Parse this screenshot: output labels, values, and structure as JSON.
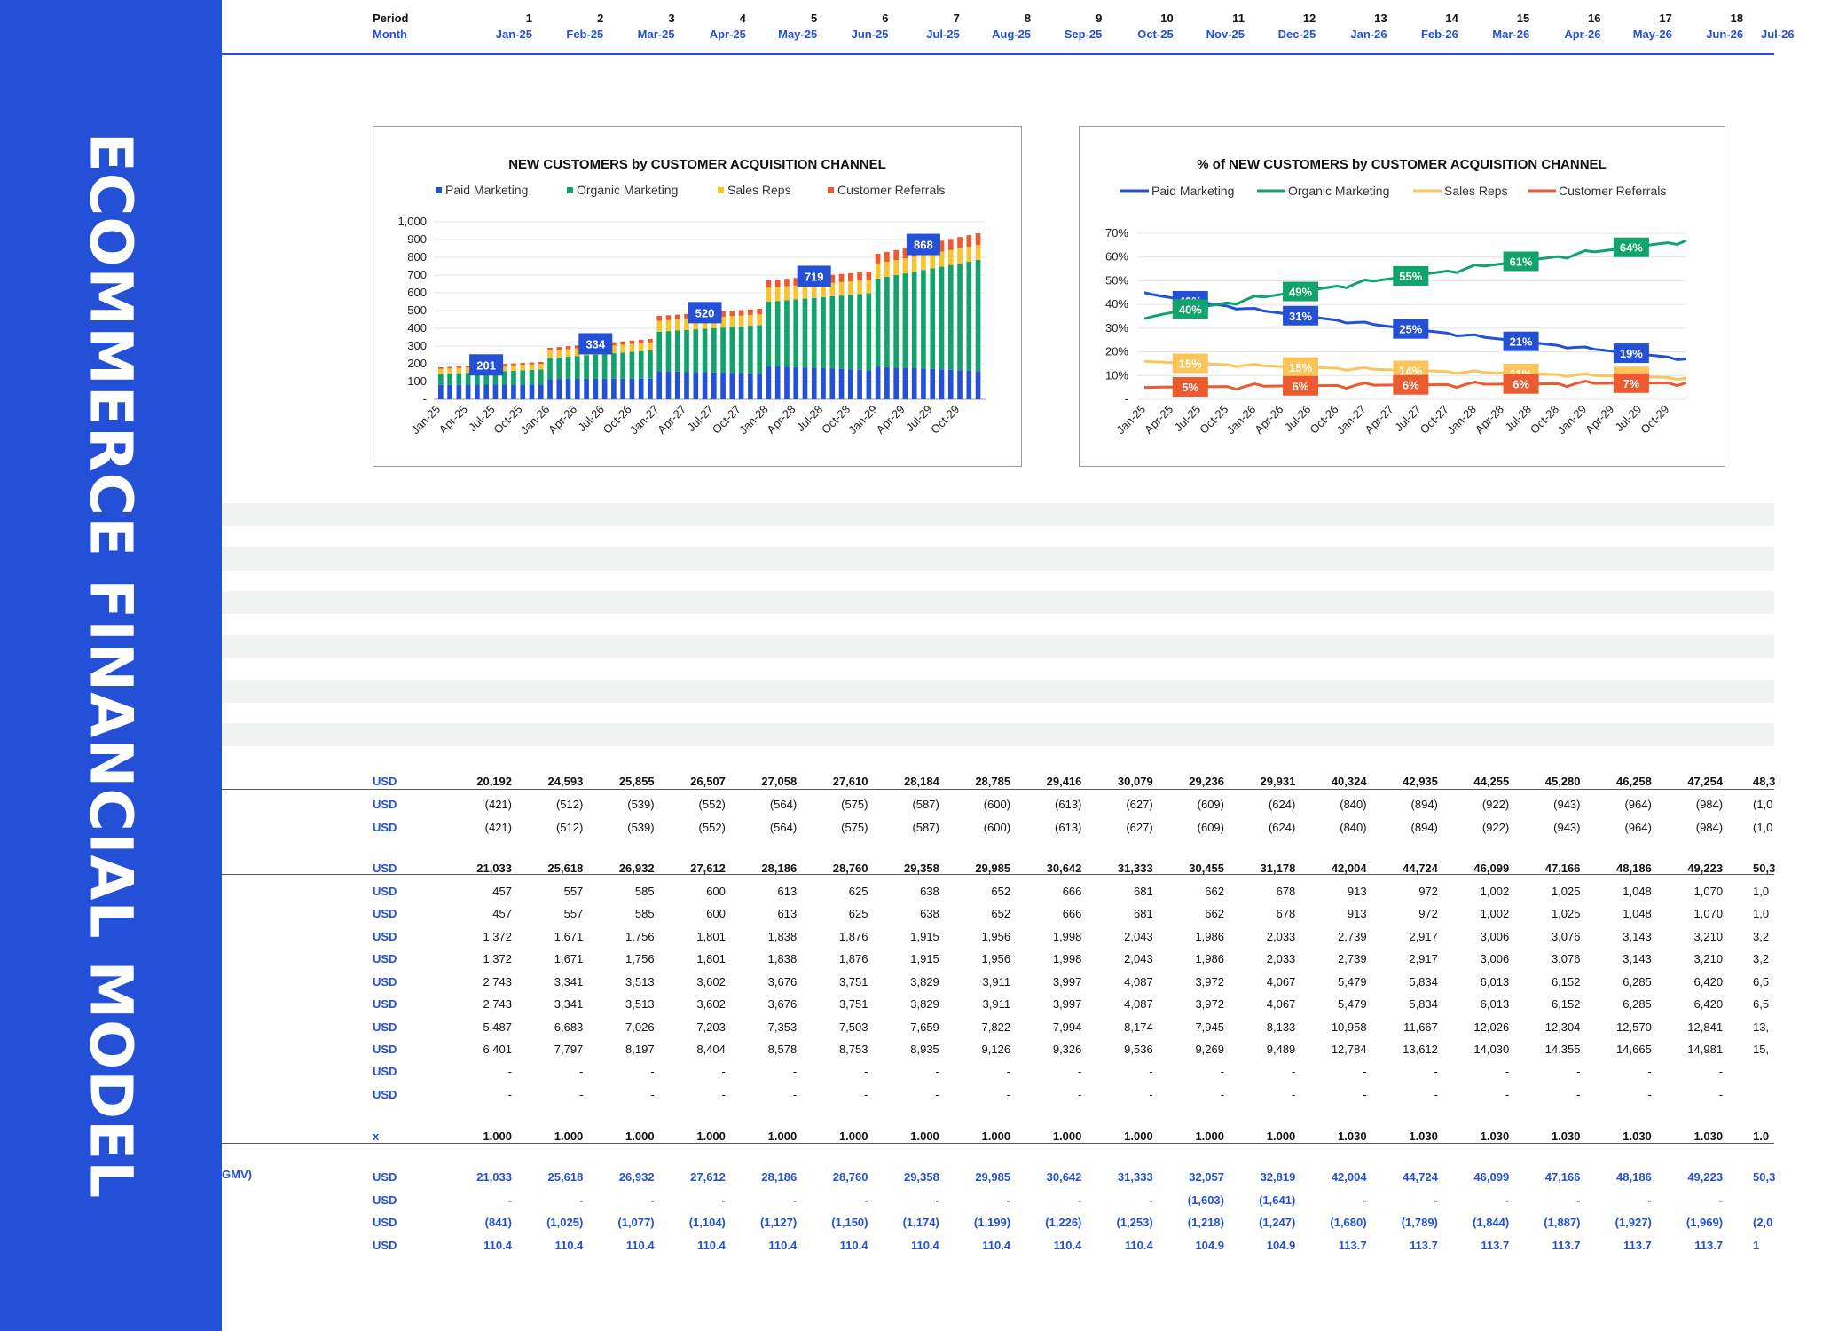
{
  "sidebar": {
    "title": "ECOMMERCE FINANCIAL MODEL"
  },
  "header": {
    "period_label": "Period",
    "month_label": "Month",
    "periods": [
      "1",
      "2",
      "3",
      "4",
      "5",
      "6",
      "7",
      "8",
      "9",
      "10",
      "11",
      "12",
      "13",
      "14",
      "15",
      "16",
      "17",
      "18"
    ],
    "months": [
      "Jan-25",
      "Feb-25",
      "Mar-25",
      "Apr-25",
      "May-25",
      "Jun-25",
      "Jul-25",
      "Aug-25",
      "Sep-25",
      "Oct-25",
      "Nov-25",
      "Dec-25",
      "Jan-26",
      "Feb-26",
      "Mar-26",
      "Apr-26",
      "May-26",
      "Jun-26"
    ],
    "partial_month": "Jul-26"
  },
  "chart_data": [
    {
      "type": "bar",
      "stacked": true,
      "title": "NEW CUSTOMERS by CUSTOMER ACQUISITION CHANNEL",
      "legend": [
        "Paid Marketing",
        "Organic Marketing",
        "Sales Reps",
        "Customer Referrals"
      ],
      "legend_position": "top",
      "colors": [
        "#2350d6",
        "#10a36b",
        "#f7c530",
        "#ee5a2f"
      ],
      "y_ticks": [
        "1,000",
        "900",
        "800",
        "700",
        "600",
        "500",
        "400",
        "300",
        "200",
        "100",
        "-"
      ],
      "ylim": [
        0,
        1000
      ],
      "x_ticks": [
        "Jan-25",
        "Apr-25",
        "Jul-25",
        "Oct-25",
        "Jan-26",
        "Apr-26",
        "Jul-26",
        "Oct-26",
        "Jan-27",
        "Apr-27",
        "Jul-27",
        "Oct-27",
        "Jan-28",
        "Apr-28",
        "Jul-28",
        "Oct-28",
        "Jan-29",
        "Apr-29",
        "Jul-29",
        "Oct-29"
      ],
      "n_months": 60,
      "year_totals_start": [
        180,
        290,
        470,
        670,
        820
      ],
      "year_totals_end": [
        210,
        340,
        510,
        720,
        935
      ],
      "series_share_start": [
        0.45,
        0.34,
        0.16,
        0.05
      ],
      "series_share_end": [
        0.17,
        0.67,
        0.09,
        0.07
      ],
      "data_labels": [
        {
          "month_index": 5,
          "text": "201"
        },
        {
          "month_index": 17,
          "text": "334"
        },
        {
          "month_index": 29,
          "text": "520"
        },
        {
          "month_index": 41,
          "text": "719"
        },
        {
          "month_index": 53,
          "text": "868"
        }
      ]
    },
    {
      "type": "line",
      "title": "% of NEW CUSTOMERS by CUSTOMER ACQUISITION CHANNEL",
      "legend": [
        "Paid Marketing",
        "Organic Marketing",
        "Sales Reps",
        "Customer Referrals"
      ],
      "legend_position": "top",
      "colors": [
        "#2350d6",
        "#10a36b",
        "#fcc55a",
        "#ee5a2f"
      ],
      "y_ticks": [
        "70%",
        "60%",
        "50%",
        "40%",
        "30%",
        "20%",
        "10%",
        "-"
      ],
      "ylim": [
        0,
        70
      ],
      "x_ticks": [
        "Jan-25",
        "Apr-25",
        "Jul-25",
        "Oct-25",
        "Jan-26",
        "Apr-26",
        "Jul-26",
        "Oct-26",
        "Jan-27",
        "Apr-27",
        "Jul-27",
        "Oct-27",
        "Jan-28",
        "Apr-28",
        "Jul-28",
        "Oct-28",
        "Jan-29",
        "Apr-29",
        "Jul-29",
        "Oct-29"
      ],
      "n_months": 60,
      "series": [
        {
          "name": "Paid Marketing",
          "start": 45,
          "end": 17,
          "labels": [
            {
              "month_index": 5,
              "text": "40%"
            },
            {
              "month_index": 17,
              "text": "31%"
            },
            {
              "month_index": 29,
              "text": "25%"
            },
            {
              "month_index": 41,
              "text": "21%"
            },
            {
              "month_index": 53,
              "text": "19%"
            }
          ]
        },
        {
          "name": "Organic Marketing",
          "start": 34,
          "end": 67,
          "labels": [
            {
              "month_index": 5,
              "text": "40%"
            },
            {
              "month_index": 17,
              "text": "49%"
            },
            {
              "month_index": 29,
              "text": "55%"
            },
            {
              "month_index": 41,
              "text": "61%"
            },
            {
              "month_index": 53,
              "text": "64%"
            }
          ]
        },
        {
          "name": "Sales Reps",
          "start": 16,
          "end": 9,
          "labels": [
            {
              "month_index": 5,
              "text": "15%"
            },
            {
              "month_index": 17,
              "text": "15%"
            },
            {
              "month_index": 29,
              "text": "14%"
            },
            {
              "month_index": 41,
              "text": "11%"
            },
            {
              "month_index": 53,
              "text": "11%"
            }
          ]
        },
        {
          "name": "Customer Referrals",
          "start": 5,
          "end": 7,
          "labels": [
            {
              "month_index": 5,
              "text": "5%"
            },
            {
              "month_index": 17,
              "text": "6%"
            },
            {
              "month_index": 29,
              "text": "6%"
            },
            {
              "month_index": 41,
              "text": "6%"
            },
            {
              "month_index": 53,
              "text": "7%"
            }
          ]
        }
      ]
    }
  ],
  "table": {
    "row_labels": {
      "gmv_row": "GMV)"
    },
    "rows": [
      {
        "unit": "USD",
        "style": "bold",
        "values": [
          "20,192",
          "24,593",
          "25,855",
          "26,507",
          "27,058",
          "27,610",
          "28,184",
          "28,785",
          "29,416",
          "30,079",
          "29,236",
          "29,931",
          "40,324",
          "42,935",
          "44,255",
          "45,280",
          "46,258",
          "47,254",
          "48,3"
        ]
      },
      {
        "unit": "USD",
        "style": "",
        "values": [
          "(421)",
          "(512)",
          "(539)",
          "(552)",
          "(564)",
          "(575)",
          "(587)",
          "(600)",
          "(613)",
          "(627)",
          "(609)",
          "(624)",
          "(840)",
          "(894)",
          "(922)",
          "(943)",
          "(964)",
          "(984)",
          "(1,0"
        ]
      },
      {
        "unit": "USD",
        "style": "",
        "values": [
          "(421)",
          "(512)",
          "(539)",
          "(552)",
          "(564)",
          "(575)",
          "(587)",
          "(600)",
          "(613)",
          "(627)",
          "(609)",
          "(624)",
          "(840)",
          "(894)",
          "(922)",
          "(943)",
          "(964)",
          "(984)",
          "(1,0"
        ]
      },
      {
        "unit": "USD",
        "style": "bold",
        "values": [
          "21,033",
          "25,618",
          "26,932",
          "27,612",
          "28,186",
          "28,760",
          "29,358",
          "29,985",
          "30,642",
          "31,333",
          "30,455",
          "31,178",
          "42,004",
          "44,724",
          "46,099",
          "47,166",
          "48,186",
          "49,223",
          "50,3"
        ]
      },
      {
        "unit": "USD",
        "style": "",
        "values": [
          "457",
          "557",
          "585",
          "600",
          "613",
          "625",
          "638",
          "652",
          "666",
          "681",
          "662",
          "678",
          "913",
          "972",
          "1,002",
          "1,025",
          "1,048",
          "1,070",
          "1,0"
        ]
      },
      {
        "unit": "USD",
        "style": "",
        "values": [
          "457",
          "557",
          "585",
          "600",
          "613",
          "625",
          "638",
          "652",
          "666",
          "681",
          "662",
          "678",
          "913",
          "972",
          "1,002",
          "1,025",
          "1,048",
          "1,070",
          "1,0"
        ]
      },
      {
        "unit": "USD",
        "style": "",
        "values": [
          "1,372",
          "1,671",
          "1,756",
          "1,801",
          "1,838",
          "1,876",
          "1,915",
          "1,956",
          "1,998",
          "2,043",
          "1,986",
          "2,033",
          "2,739",
          "2,917",
          "3,006",
          "3,076",
          "3,143",
          "3,210",
          "3,2"
        ]
      },
      {
        "unit": "USD",
        "style": "",
        "values": [
          "1,372",
          "1,671",
          "1,756",
          "1,801",
          "1,838",
          "1,876",
          "1,915",
          "1,956",
          "1,998",
          "2,043",
          "1,986",
          "2,033",
          "2,739",
          "2,917",
          "3,006",
          "3,076",
          "3,143",
          "3,210",
          "3,2"
        ]
      },
      {
        "unit": "USD",
        "style": "",
        "values": [
          "2,743",
          "3,341",
          "3,513",
          "3,602",
          "3,676",
          "3,751",
          "3,829",
          "3,911",
          "3,997",
          "4,087",
          "3,972",
          "4,067",
          "5,479",
          "5,834",
          "6,013",
          "6,152",
          "6,285",
          "6,420",
          "6,5"
        ]
      },
      {
        "unit": "USD",
        "style": "",
        "values": [
          "2,743",
          "3,341",
          "3,513",
          "3,602",
          "3,676",
          "3,751",
          "3,829",
          "3,911",
          "3,997",
          "4,087",
          "3,972",
          "4,067",
          "5,479",
          "5,834",
          "6,013",
          "6,152",
          "6,285",
          "6,420",
          "6,5"
        ]
      },
      {
        "unit": "USD",
        "style": "",
        "values": [
          "5,487",
          "6,683",
          "7,026",
          "7,203",
          "7,353",
          "7,503",
          "7,659",
          "7,822",
          "7,994",
          "8,174",
          "7,945",
          "8,133",
          "10,958",
          "11,667",
          "12,026",
          "12,304",
          "12,570",
          "12,841",
          "13,"
        ]
      },
      {
        "unit": "USD",
        "style": "",
        "values": [
          "6,401",
          "7,797",
          "8,197",
          "8,404",
          "8,578",
          "8,753",
          "8,935",
          "9,126",
          "9,326",
          "9,536",
          "9,269",
          "9,489",
          "12,784",
          "13,612",
          "14,030",
          "14,355",
          "14,665",
          "14,981",
          "15,"
        ]
      },
      {
        "unit": "USD",
        "style": "",
        "values": [
          "-",
          "-",
          "-",
          "-",
          "-",
          "-",
          "-",
          "-",
          "-",
          "-",
          "-",
          "-",
          "-",
          "-",
          "-",
          "-",
          "-",
          "-",
          ""
        ]
      },
      {
        "unit": "USD",
        "style": "",
        "values": [
          "-",
          "-",
          "-",
          "-",
          "-",
          "-",
          "-",
          "-",
          "-",
          "-",
          "-",
          "-",
          "-",
          "-",
          "-",
          "-",
          "-",
          "-",
          ""
        ]
      },
      {
        "unit": "x",
        "style": "bold",
        "values": [
          "1.000",
          "1.000",
          "1.000",
          "1.000",
          "1.000",
          "1.000",
          "1.000",
          "1.000",
          "1.000",
          "1.000",
          "1.000",
          "1.000",
          "1.030",
          "1.030",
          "1.030",
          "1.030",
          "1.030",
          "1.030",
          "1.0"
        ]
      },
      {
        "unit": "USD",
        "style": "blue",
        "values": [
          "21,033",
          "25,618",
          "26,932",
          "27,612",
          "28,186",
          "28,760",
          "29,358",
          "29,985",
          "30,642",
          "31,333",
          "32,057",
          "32,819",
          "42,004",
          "44,724",
          "46,099",
          "47,166",
          "48,186",
          "49,223",
          "50,3"
        ]
      },
      {
        "unit": "USD",
        "style": "blue",
        "values": [
          "-",
          "-",
          "-",
          "-",
          "-",
          "-",
          "-",
          "-",
          "-",
          "-",
          "(1,603)",
          "(1,641)",
          "-",
          "-",
          "-",
          "-",
          "-",
          "-",
          ""
        ]
      },
      {
        "unit": "USD",
        "style": "blue",
        "values": [
          "(841)",
          "(1,025)",
          "(1,077)",
          "(1,104)",
          "(1,127)",
          "(1,150)",
          "(1,174)",
          "(1,199)",
          "(1,226)",
          "(1,253)",
          "(1,218)",
          "(1,247)",
          "(1,680)",
          "(1,789)",
          "(1,844)",
          "(1,887)",
          "(1,927)",
          "(1,969)",
          "(2,0"
        ]
      },
      {
        "unit": "USD",
        "style": "blue",
        "values": [
          "110.4",
          "110.4",
          "110.4",
          "110.4",
          "110.4",
          "110.4",
          "110.4",
          "110.4",
          "110.4",
          "110.4",
          "104.9",
          "104.9",
          "113.7",
          "113.7",
          "113.7",
          "113.7",
          "113.7",
          "113.7",
          "1"
        ]
      }
    ]
  }
}
